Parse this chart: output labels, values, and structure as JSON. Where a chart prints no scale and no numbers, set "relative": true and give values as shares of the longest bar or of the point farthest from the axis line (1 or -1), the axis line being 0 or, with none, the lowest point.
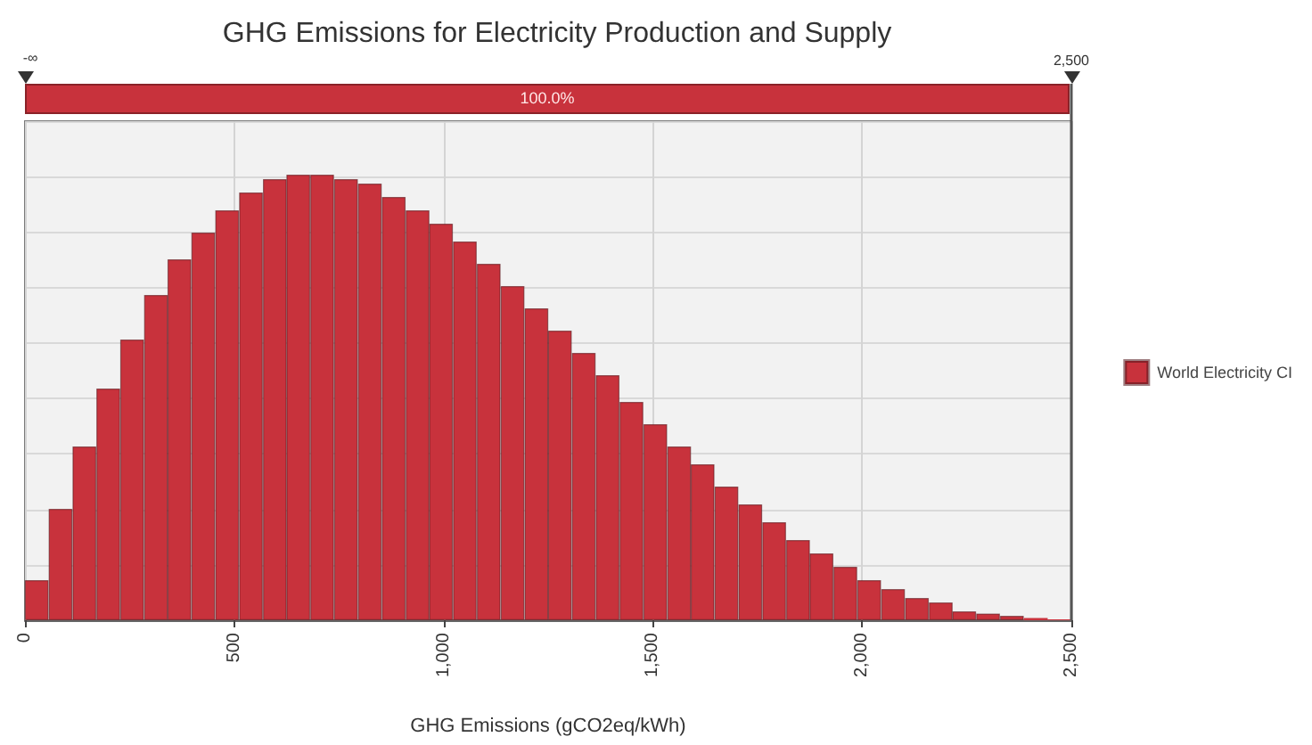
{
  "chart_data": {
    "type": "bar",
    "title": "GHG Emissions for Electricity Production and Supply",
    "xlabel": "GHG Emissions (gCO2eq/kWh)",
    "x": [
      28,
      85,
      142,
      199,
      256,
      313,
      369,
      426,
      483,
      540,
      597,
      653,
      710,
      767,
      824,
      881,
      938,
      994,
      1051,
      1108,
      1165,
      1222,
      1278,
      1335,
      1392,
      1449,
      1506,
      1563,
      1619,
      1676,
      1733,
      1790,
      1847,
      1903,
      1960,
      2017,
      2074,
      2131,
      2188,
      2244,
      2301,
      2358,
      2415,
      2472
    ],
    "series": [
      {
        "name": "World Electricity CI",
        "color": "#c8323c",
        "values": [
          0.09,
          0.25,
          0.39,
          0.52,
          0.63,
          0.73,
          0.81,
          0.87,
          0.92,
          0.96,
          0.99,
          1,
          1,
          0.99,
          0.98,
          0.95,
          0.92,
          0.89,
          0.85,
          0.8,
          0.75,
          0.7,
          0.65,
          0.6,
          0.55,
          0.49,
          0.44,
          0.39,
          0.35,
          0.3,
          0.26,
          0.22,
          0.18,
          0.15,
          0.12,
          0.09,
          0.07,
          0.05,
          0.04,
          0.02,
          0.015,
          0.01,
          0.005,
          0.002
        ]
      }
    ],
    "relative": true,
    "xlim": [
      0,
      2500
    ],
    "xticks": [
      0,
      500,
      {
        "value": 1000,
        "label": "1,000"
      },
      {
        "value": 1500,
        "label": "1,500"
      },
      {
        "value": 2000,
        "label": "2,000"
      },
      {
        "value": 2500,
        "label": "2,500"
      }
    ],
    "ref_lines": [
      {
        "axis": "x",
        "value": 2500,
        "label": "2,500",
        "color": "#555555"
      }
    ],
    "grid": true,
    "legend": "right",
    "annotations": [
      "-∞",
      "100.0%"
    ]
  }
}
